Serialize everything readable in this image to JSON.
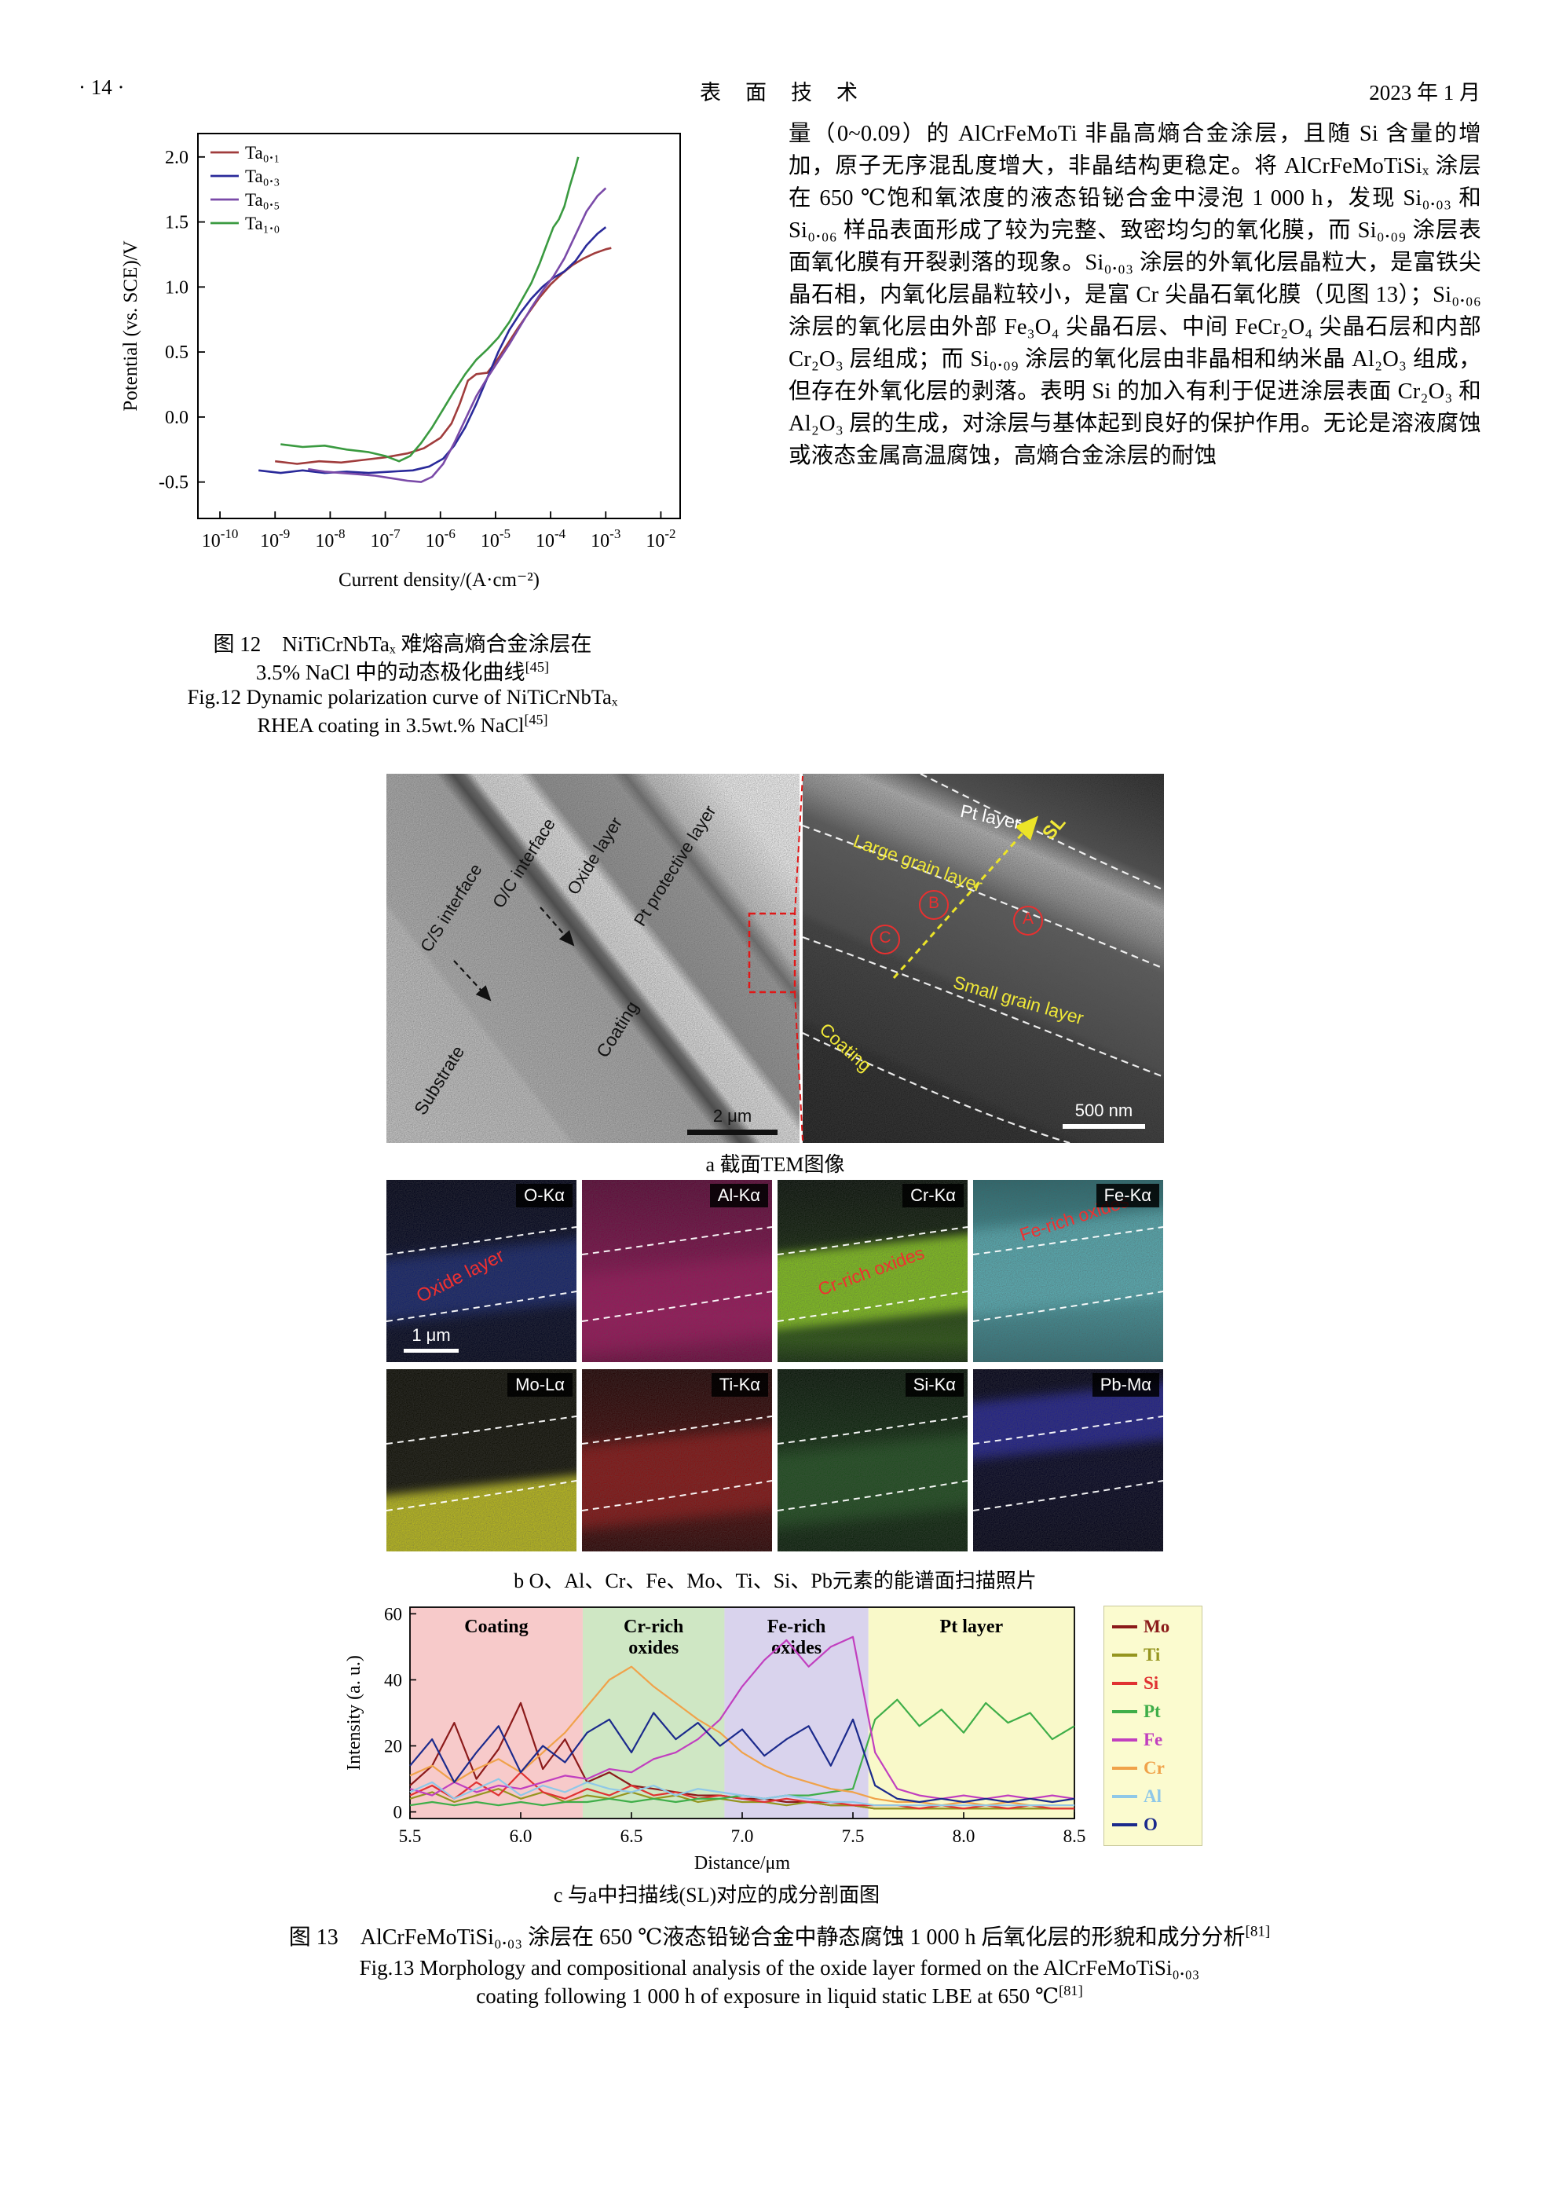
{
  "header": {
    "page_number": "· 14 ·",
    "journal_title": "表　面　技　术",
    "date": "2023 年 1 月"
  },
  "body_text": "量（0~0.09）的 AlCrFeMoTi 非晶高熵合金涂层，且随 Si 含量的增加，原子无序混乱度增大，非晶结构更稳定。将 AlCrFeMoTiSiₓ 涂层在 650 ℃饱和氧浓度的液态铅铋合金中浸泡 1 000 h，发现 Si₀.₀₃ 和 Si₀.₀₆ 样品表面形成了较为完整、致密均匀的氧化膜，而 Si₀.₀₉ 涂层表面氧化膜有开裂剥落的现象。Si₀.₀₃ 涂层的外氧化层晶粒大，是富铁尖晶石相，内氧化层晶粒较小，是富 Cr 尖晶石氧化膜（见图 13）；Si₀.₀₆ 涂层的氧化层由外部 Fe₃O₄ 尖晶石层、中间 FeCr₂O₄ 尖晶石层和内部 Cr₂O₃ 层组成；而 Si₀.₀₉ 涂层的氧化层由非晶相和纳米晶 Al₂O₃ 组成，但存在外氧化层的剥落。表明 Si 的加入有利于促进涂层表面 Cr₂O₃ 和 Al₂O₃ 层的生成，对涂层与基体起到良好的保护作用。无论是溶液腐蚀或液态金属高温腐蚀，高熵合金涂层的耐蚀",
  "fig12": {
    "caption_cn_line1": "图 12　NiTiCrNbTaₓ 难熔高熵合金涂层在",
    "caption_cn_line2": "3.5% NaCl 中的动态极化曲线",
    "caption_cn_ref": "[45]",
    "caption_en_line1": "Fig.12 Dynamic polarization curve of NiTiCrNbTaₓ",
    "caption_en_line2": "RHEA coating in 3.5wt.% NaCl",
    "caption_en_ref": "[45]",
    "chart_data": {
      "type": "line",
      "xlabel": "Current density/(A·cm⁻²)",
      "ylabel": "Potential (vs. SCE)/V",
      "x_scale": "log10",
      "xlim": [
        -10.4,
        -1.65
      ],
      "ylim": [
        -0.78,
        2.18
      ],
      "x_ticks": [
        {
          "e": -10,
          "sup": "-10"
        },
        {
          "e": -9,
          "sup": "-9"
        },
        {
          "e": -8,
          "sup": "-8"
        },
        {
          "e": -7,
          "sup": "-7"
        },
        {
          "e": -6,
          "sup": "-6"
        },
        {
          "e": -5,
          "sup": "-5"
        },
        {
          "e": -4,
          "sup": "-4"
        },
        {
          "e": -3,
          "sup": "-3"
        },
        {
          "e": -2,
          "sup": "-2"
        }
      ],
      "y_ticks": [
        {
          "v": 2.0,
          "label": "2.0"
        },
        {
          "v": 1.5,
          "label": "1.5"
        },
        {
          "v": 1.0,
          "label": "1.0"
        },
        {
          "v": 0.5,
          "label": "0.5"
        },
        {
          "v": 0.0,
          "label": "0.0"
        },
        {
          "v": -0.5,
          "label": "-0.5"
        }
      ],
      "legend_position": "top-left",
      "series": [
        {
          "name": "Ta₀.₁",
          "color": "#a03c3c",
          "points": [
            [
              -9.0,
              -0.34
            ],
            [
              -8.6,
              -0.36
            ],
            [
              -8.2,
              -0.34
            ],
            [
              -7.8,
              -0.35
            ],
            [
              -7.4,
              -0.33
            ],
            [
              -7.0,
              -0.31
            ],
            [
              -6.6,
              -0.28
            ],
            [
              -6.3,
              -0.24
            ],
            [
              -6.0,
              -0.16
            ],
            [
              -5.8,
              -0.05
            ],
            [
              -5.65,
              0.1
            ],
            [
              -5.5,
              0.28
            ],
            [
              -5.35,
              0.33
            ],
            [
              -5.15,
              0.34
            ],
            [
              -5.0,
              0.42
            ],
            [
              -4.8,
              0.55
            ],
            [
              -4.6,
              0.68
            ],
            [
              -4.4,
              0.8
            ],
            [
              -4.2,
              0.92
            ],
            [
              -4.0,
              1.02
            ],
            [
              -3.8,
              1.1
            ],
            [
              -3.6,
              1.17
            ],
            [
              -3.4,
              1.22
            ],
            [
              -3.2,
              1.26
            ],
            [
              -3.0,
              1.29
            ],
            [
              -2.9,
              1.3
            ]
          ]
        },
        {
          "name": "Ta₀.₃",
          "color": "#2a2a9a",
          "points": [
            [
              -9.3,
              -0.41
            ],
            [
              -8.9,
              -0.43
            ],
            [
              -8.5,
              -0.41
            ],
            [
              -8.1,
              -0.43
            ],
            [
              -7.7,
              -0.42
            ],
            [
              -7.3,
              -0.43
            ],
            [
              -6.9,
              -0.42
            ],
            [
              -6.5,
              -0.41
            ],
            [
              -6.2,
              -0.38
            ],
            [
              -5.95,
              -0.32
            ],
            [
              -5.75,
              -0.22
            ],
            [
              -5.55,
              -0.08
            ],
            [
              -5.35,
              0.1
            ],
            [
              -5.15,
              0.3
            ],
            [
              -4.95,
              0.5
            ],
            [
              -4.75,
              0.67
            ],
            [
              -4.55,
              0.8
            ],
            [
              -4.35,
              0.91
            ],
            [
              -4.15,
              1.0
            ],
            [
              -3.95,
              1.07
            ],
            [
              -3.75,
              1.12
            ],
            [
              -3.55,
              1.2
            ],
            [
              -3.35,
              1.32
            ],
            [
              -3.15,
              1.41
            ],
            [
              -3.0,
              1.46
            ]
          ]
        },
        {
          "name": "Ta₀.₅",
          "color": "#7a4aa8",
          "points": [
            [
              -8.4,
              -0.4
            ],
            [
              -8.1,
              -0.42
            ],
            [
              -7.8,
              -0.43
            ],
            [
              -7.5,
              -0.44
            ],
            [
              -7.2,
              -0.45
            ],
            [
              -6.9,
              -0.47
            ],
            [
              -6.6,
              -0.49
            ],
            [
              -6.35,
              -0.5
            ],
            [
              -6.15,
              -0.46
            ],
            [
              -5.95,
              -0.36
            ],
            [
              -5.75,
              -0.2
            ],
            [
              -5.55,
              -0.02
            ],
            [
              -5.35,
              0.16
            ],
            [
              -5.15,
              0.3
            ],
            [
              -4.95,
              0.43
            ],
            [
              -4.75,
              0.56
            ],
            [
              -4.55,
              0.7
            ],
            [
              -4.35,
              0.84
            ],
            [
              -4.15,
              0.97
            ],
            [
              -3.95,
              1.08
            ],
            [
              -3.75,
              1.22
            ],
            [
              -3.55,
              1.4
            ],
            [
              -3.35,
              1.58
            ],
            [
              -3.15,
              1.7
            ],
            [
              -3.0,
              1.76
            ]
          ]
        },
        {
          "name": "Ta₁.₀",
          "color": "#3a9a40",
          "points": [
            [
              -8.9,
              -0.21
            ],
            [
              -8.5,
              -0.23
            ],
            [
              -8.1,
              -0.22
            ],
            [
              -7.7,
              -0.25
            ],
            [
              -7.3,
              -0.27
            ],
            [
              -7.0,
              -0.3
            ],
            [
              -6.75,
              -0.34
            ],
            [
              -6.55,
              -0.3
            ],
            [
              -6.35,
              -0.2
            ],
            [
              -6.15,
              -0.08
            ],
            [
              -5.95,
              0.06
            ],
            [
              -5.75,
              0.2
            ],
            [
              -5.55,
              0.33
            ],
            [
              -5.35,
              0.44
            ],
            [
              -5.15,
              0.52
            ],
            [
              -4.95,
              0.61
            ],
            [
              -4.75,
              0.73
            ],
            [
              -4.55,
              0.88
            ],
            [
              -4.35,
              1.03
            ],
            [
              -4.2,
              1.18
            ],
            [
              -4.05,
              1.35
            ],
            [
              -3.95,
              1.46
            ],
            [
              -3.85,
              1.52
            ],
            [
              -3.75,
              1.62
            ],
            [
              -3.65,
              1.78
            ],
            [
              -3.55,
              1.92
            ],
            [
              -3.5,
              2.0
            ]
          ]
        }
      ]
    }
  },
  "fig13": {
    "panel_a_left": {
      "substrate": "Substrate",
      "coating": "Coating",
      "cs_interface": "C/S interface",
      "oc_interface": "O/C interface",
      "oxide_layer": "Oxide layer",
      "pt_protective": "Pt protective layer",
      "scale": "2 μm"
    },
    "panel_a_right": {
      "coating": "Coating",
      "small_grain": "Small grain layer",
      "large_grain": "Large grain layer",
      "pt_layer": "Pt layer",
      "sl": "SL",
      "marker_a": "A",
      "marker_b": "B",
      "marker_c": "C",
      "scale": "500 nm"
    },
    "caption_a": "a 截面TEM图像",
    "eds_panels": [
      {
        "label": "O-Kα",
        "annotation": "Oxide layer",
        "scale": "1 μm"
      },
      {
        "label": "Al-Kα"
      },
      {
        "label": "Cr-Kα",
        "annotation": "Cr-rich oxides"
      },
      {
        "label": "Fe-Kα",
        "annotation": "Fe-rich oxides"
      },
      {
        "label": "Mo-Lα"
      },
      {
        "label": "Ti-Kα"
      },
      {
        "label": "Si-Kα"
      },
      {
        "label": "Pb-Mα"
      }
    ],
    "caption_b": "b O、Al、Cr、Fe、Mo、Ti、Si、Pb元素的能谱面扫描照片",
    "profile": {
      "chart_data": {
        "type": "line",
        "xlabel": "Distance/μm",
        "ylabel": "Intensity (a. u.)",
        "xlim": [
          5.5,
          8.5
        ],
        "ylim": [
          -2,
          62
        ],
        "x_ticks": [
          5.5,
          6.0,
          6.5,
          7.0,
          7.5,
          8.0,
          8.5
        ],
        "y_ticks": [
          0,
          20,
          40,
          60
        ],
        "x_start": 5.5,
        "x_step": 0.1,
        "legend_position": "right",
        "regions": [
          {
            "label": [
              "Coating"
            ],
            "from": 5.5,
            "to": 6.28,
            "color": "#f7caca"
          },
          {
            "label": [
              "Cr-rich",
              "oxides"
            ],
            "from": 6.28,
            "to": 6.92,
            "color": "#cfe7c4"
          },
          {
            "label": [
              "Fe-rich",
              "oxides"
            ],
            "from": 6.92,
            "to": 7.57,
            "color": "#d9d3ed"
          },
          {
            "label": [
              "Pt layer"
            ],
            "from": 7.57,
            "to": 8.5,
            "color": "#f9f9c9"
          }
        ],
        "series": [
          {
            "name": "Mo",
            "color": "#8b1a1a",
            "values": [
              8,
              14,
              27,
              10,
              19,
              33,
              13,
              22,
              9,
              12,
              8,
              7,
              6,
              5,
              5,
              4,
              4,
              3,
              3,
              2,
              2,
              1,
              1,
              1,
              1,
              1,
              1,
              1,
              1,
              1,
              1
            ]
          },
          {
            "name": "Ti",
            "color": "#95951f",
            "values": [
              4,
              6,
              3,
              5,
              7,
              4,
              6,
              3,
              5,
              4,
              6,
              4,
              5,
              3,
              4,
              3,
              3,
              2,
              3,
              2,
              2,
              1,
              1,
              1,
              1,
              1,
              1,
              1,
              1,
              1,
              1
            ]
          },
          {
            "name": "Si",
            "color": "#e03232",
            "values": [
              5,
              8,
              4,
              9,
              5,
              12,
              6,
              4,
              7,
              5,
              8,
              5,
              6,
              4,
              5,
              4,
              3,
              4,
              3,
              3,
              2,
              2,
              2,
              1,
              2,
              1,
              2,
              1,
              2,
              1,
              1
            ]
          },
          {
            "name": "Pt",
            "color": "#3fae49",
            "values": [
              2,
              3,
              2,
              3,
              2,
              3,
              2,
              3,
              3,
              4,
              3,
              4,
              3,
              4,
              4,
              5,
              4,
              5,
              5,
              6,
              7,
              28,
              34,
              26,
              31,
              24,
              33,
              27,
              30,
              22,
              26
            ]
          },
          {
            "name": "Fe",
            "color": "#c13fbf",
            "values": [
              7,
              5,
              9,
              6,
              8,
              7,
              9,
              11,
              10,
              13,
              12,
              16,
              18,
              22,
              28,
              38,
              46,
              52,
              44,
              50,
              53,
              18,
              7,
              5,
              4,
              5,
              4,
              5,
              4,
              5,
              4
            ]
          },
          {
            "name": "Cr",
            "color": "#f0a24a",
            "values": [
              11,
              14,
              9,
              13,
              16,
              12,
              18,
              24,
              32,
              40,
              44,
              38,
              33,
              28,
              24,
              18,
              14,
              11,
              9,
              7,
              6,
              4,
              3,
              3,
              2,
              3,
              2,
              3,
              2,
              2,
              2
            ]
          },
          {
            "name": "Al",
            "color": "#8fc8e8",
            "values": [
              6,
              9,
              4,
              7,
              10,
              5,
              8,
              6,
              9,
              7,
              6,
              8,
              5,
              7,
              6,
              5,
              4,
              5,
              4,
              3,
              3,
              2,
              2,
              2,
              2,
              2,
              2,
              2,
              2,
              2,
              2
            ]
          },
          {
            "name": "O",
            "color": "#1b2a8c",
            "values": [
              14,
              22,
              9,
              18,
              26,
              12,
              20,
              15,
              24,
              28,
              18,
              30,
              22,
              27,
              20,
              25,
              17,
              22,
              26,
              14,
              28,
              8,
              4,
              3,
              4,
              3,
              4,
              3,
              4,
              3,
              4
            ]
          }
        ]
      }
    },
    "caption_c": "c 与a中扫描线(SL)对应的成分剖面图",
    "caption_cn": "图 13　AlCrFeMoTiSi₀.₀₃ 涂层在 650 ℃液态铅铋合金中静态腐蚀 1 000 h 后氧化层的形貌和成分分析",
    "caption_cn_ref": "[81]",
    "caption_en_line1": "Fig.13 Morphology and compositional analysis of the oxide layer formed on the AlCrFeMoTiSi₀.₀₃",
    "caption_en_line2": "coating following 1 000 h of exposure in liquid static LBE at 650  ℃",
    "caption_en_ref": "[81]"
  }
}
